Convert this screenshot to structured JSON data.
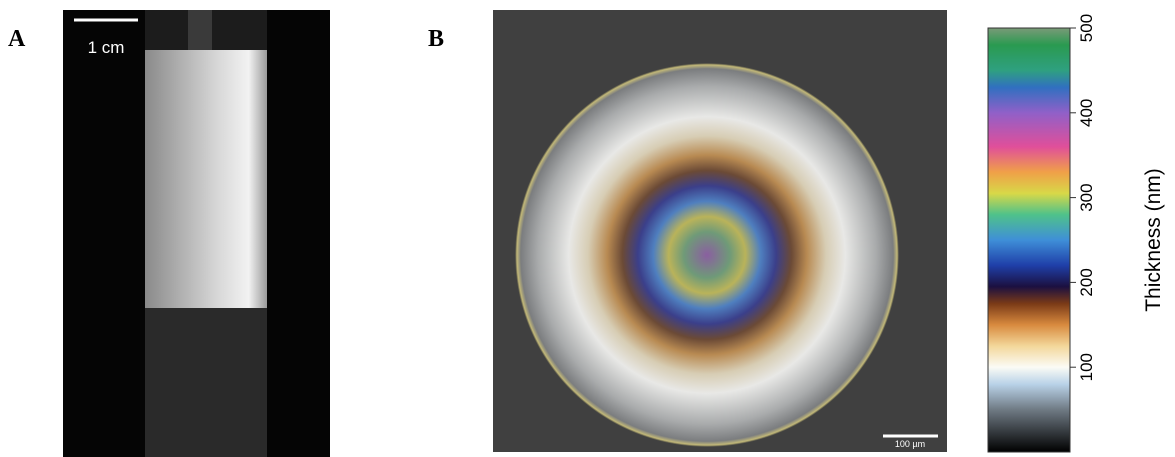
{
  "panels": {
    "a": {
      "label": "A",
      "scale_bar": "1 cm"
    },
    "b": {
      "label": "B",
      "scale_bar": "100 µm"
    }
  },
  "colorbar": {
    "label": "Thickness (nm)",
    "lim": [
      0,
      500
    ],
    "ticks": [
      100,
      200,
      300,
      400,
      500
    ]
  }
}
